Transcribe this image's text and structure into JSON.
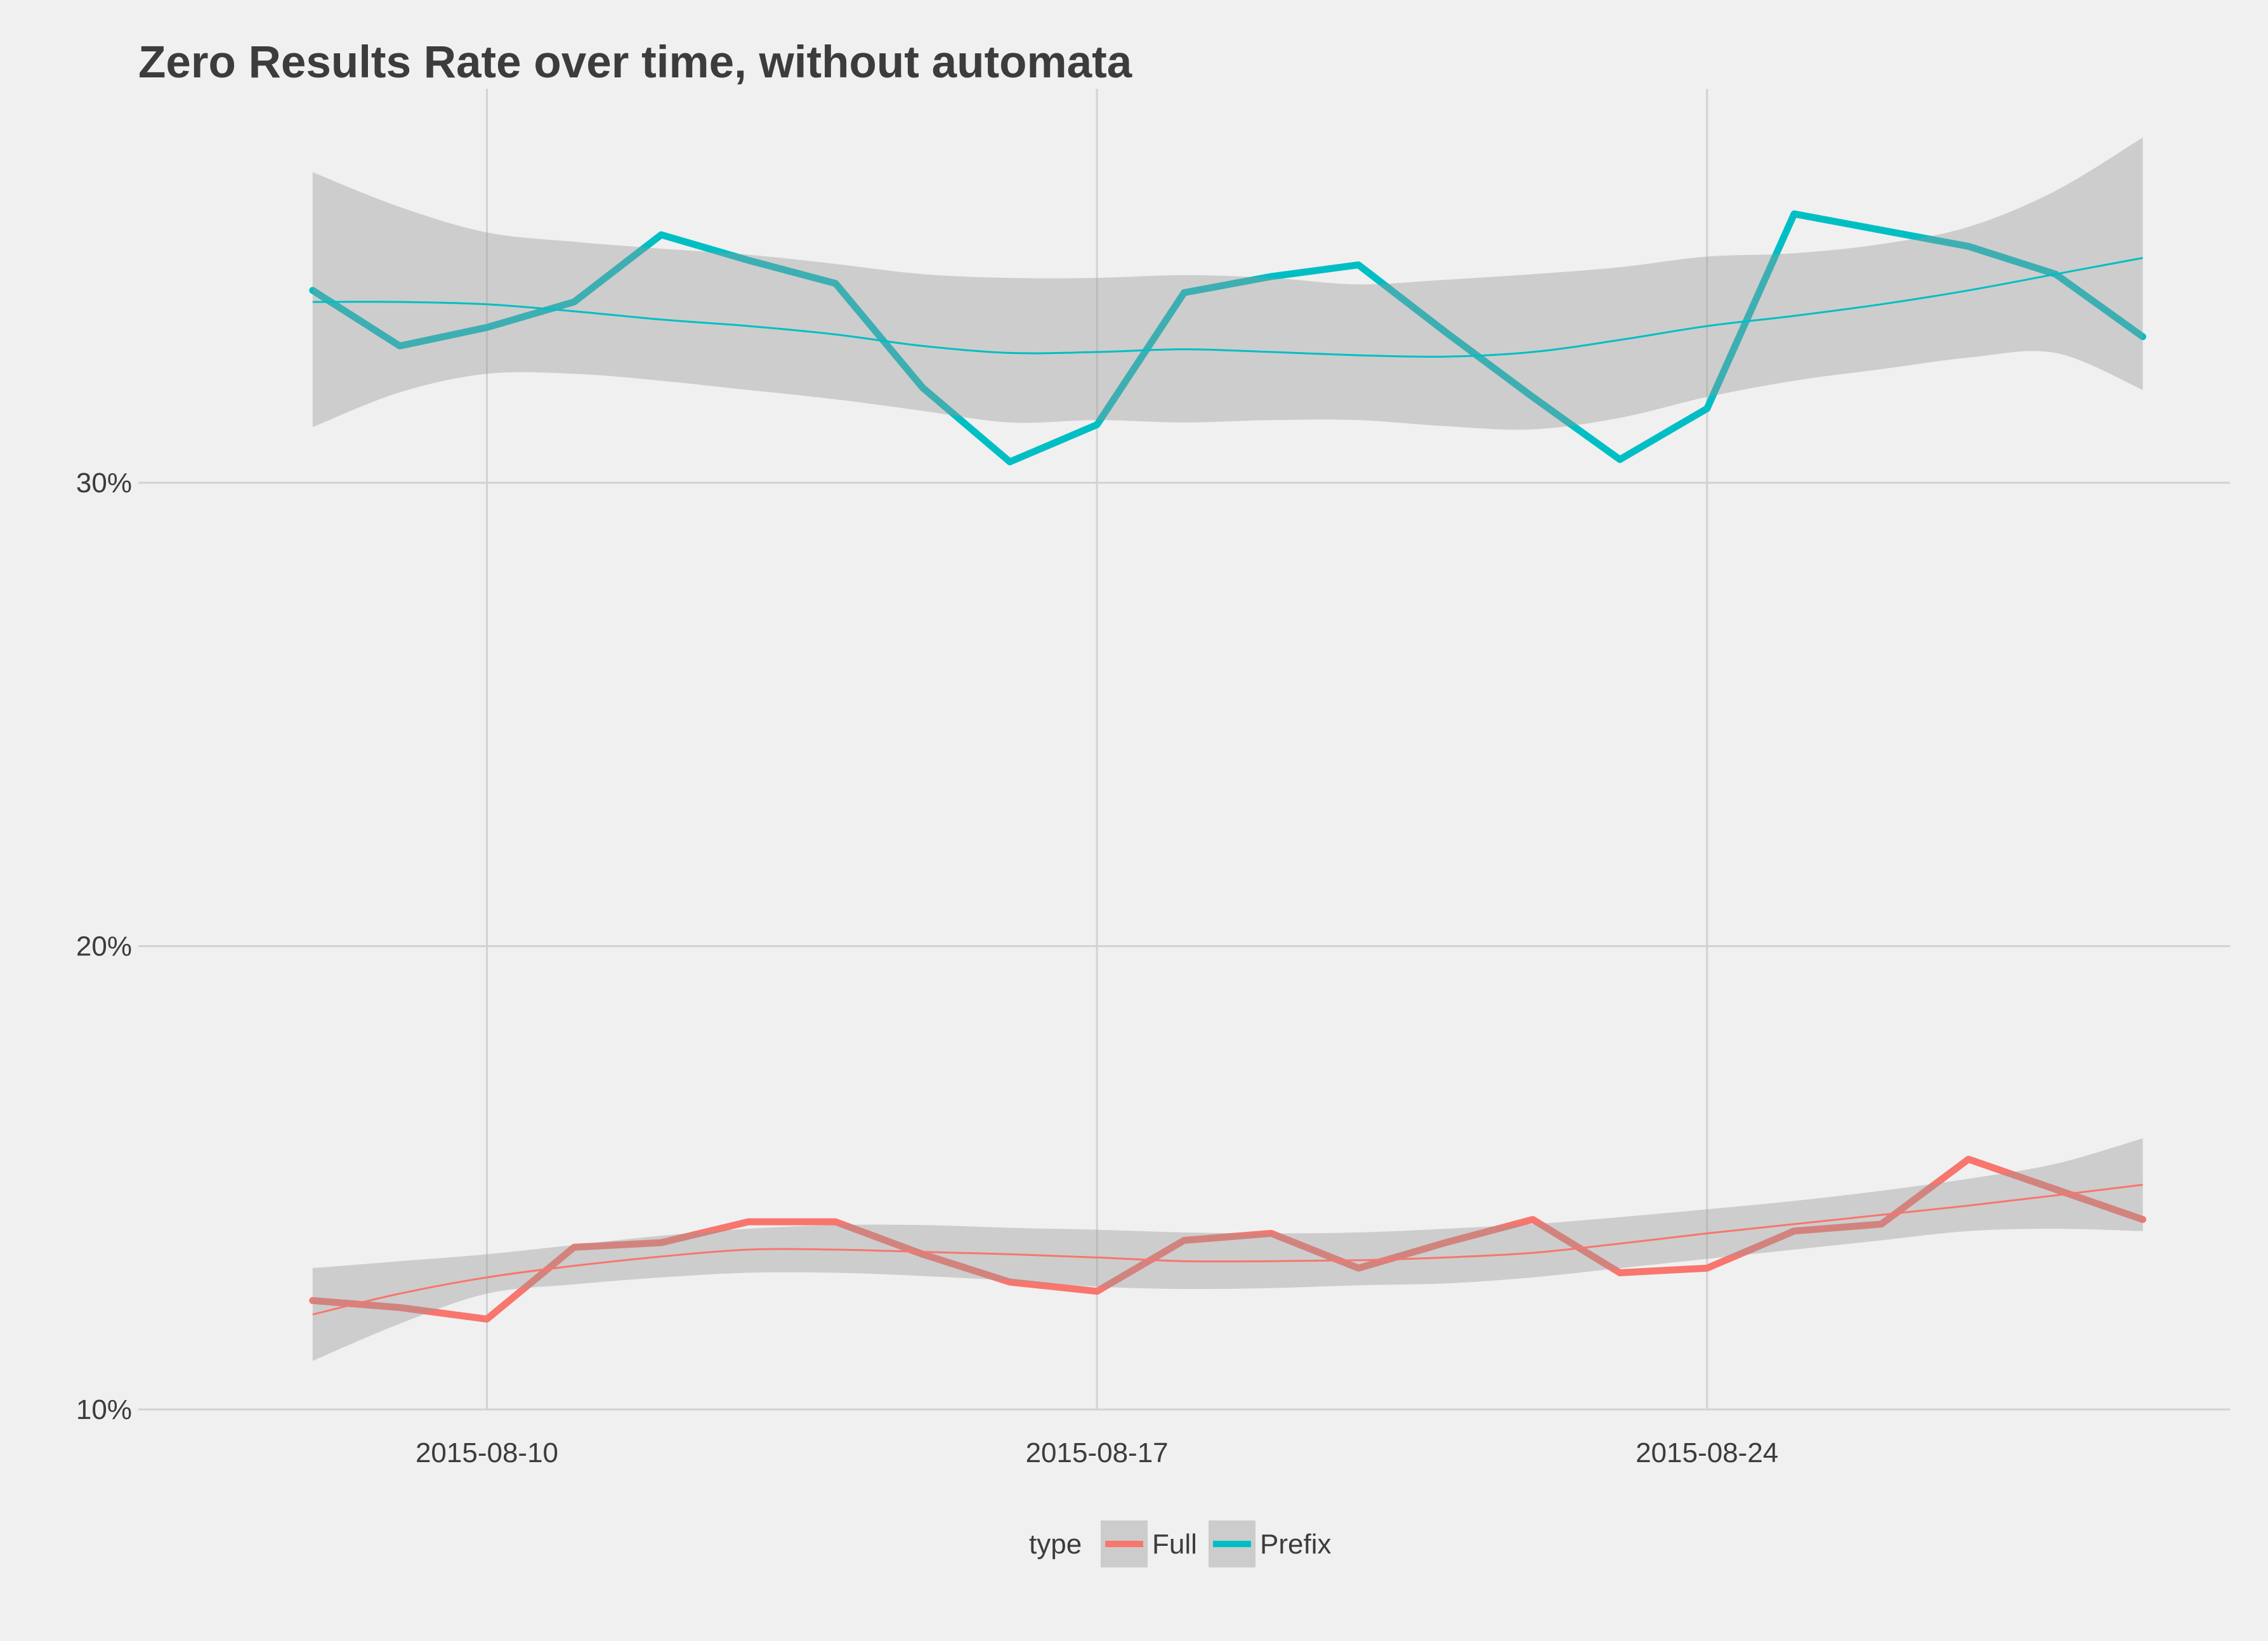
{
  "chart_data": {
    "type": "line",
    "title": "Zero Results Rate over time, without automata",
    "xlabel": "",
    "ylabel": "",
    "x_tick_labels": [
      "2015-08-10",
      "2015-08-17",
      "2015-08-24"
    ],
    "y_tick_labels": [
      "10%",
      "20%",
      "30%"
    ],
    "x_range": [
      "2015-08-06",
      "2015-08-30"
    ],
    "ylim": [
      10,
      38.5
    ],
    "grid": true,
    "legend": {
      "title": "type",
      "position": "bottom"
    },
    "x": [
      "2015-08-08",
      "2015-08-09",
      "2015-08-10",
      "2015-08-11",
      "2015-08-12",
      "2015-08-13",
      "2015-08-14",
      "2015-08-15",
      "2015-08-16",
      "2015-08-17",
      "2015-08-18",
      "2015-08-19",
      "2015-08-20",
      "2015-08-21",
      "2015-08-22",
      "2015-08-23",
      "2015-08-24",
      "2015-08-25",
      "2015-08-26",
      "2015-08-27",
      "2015-08-28",
      "2015-08-29"
    ],
    "series": [
      {
        "name": "Full",
        "color": "#F8766D",
        "values": [
          12.35,
          12.2,
          11.95,
          13.5,
          13.6,
          14.05,
          14.05,
          13.35,
          12.75,
          12.55,
          13.65,
          13.8,
          13.05,
          13.6,
          14.1,
          12.95,
          13.05,
          13.85,
          14.0,
          15.4,
          14.75,
          14.1
        ],
        "smooth": [
          12.05,
          12.5,
          12.85,
          13.1,
          13.3,
          13.45,
          13.45,
          13.4,
          13.35,
          13.28,
          13.2,
          13.2,
          13.22,
          13.28,
          13.38,
          13.58,
          13.8,
          14.0,
          14.2,
          14.4,
          14.62,
          14.85
        ],
        "band_lower": [
          11.05,
          11.85,
          12.5,
          12.7,
          12.85,
          12.95,
          12.95,
          12.88,
          12.78,
          12.65,
          12.6,
          12.62,
          12.68,
          12.72,
          12.85,
          13.05,
          13.25,
          13.45,
          13.65,
          13.85,
          13.9,
          13.85
        ],
        "band_upper": [
          13.05,
          13.2,
          13.35,
          13.55,
          13.75,
          13.9,
          13.98,
          13.98,
          13.92,
          13.88,
          13.82,
          13.8,
          13.82,
          13.9,
          14.0,
          14.15,
          14.32,
          14.5,
          14.72,
          14.98,
          15.3,
          15.85
        ]
      },
      {
        "name": "Prefix",
        "color": "#00BFC4",
        "values": [
          34.15,
          32.95,
          33.35,
          33.9,
          35.35,
          34.8,
          34.3,
          32.05,
          30.45,
          31.25,
          34.1,
          34.45,
          34.7,
          33.25,
          31.85,
          30.5,
          31.6,
          35.8,
          35.45,
          35.1,
          34.5,
          33.15
        ],
        "smooth": [
          33.9,
          33.9,
          33.85,
          33.7,
          33.52,
          33.38,
          33.2,
          32.95,
          32.8,
          32.82,
          32.88,
          32.82,
          32.75,
          32.72,
          32.82,
          33.08,
          33.38,
          33.6,
          33.85,
          34.15,
          34.5,
          34.85
        ],
        "band_lower": [
          31.2,
          31.95,
          32.35,
          32.35,
          32.2,
          32.0,
          31.8,
          31.55,
          31.3,
          31.35,
          31.3,
          31.35,
          31.35,
          31.22,
          31.15,
          31.4,
          31.85,
          32.2,
          32.45,
          32.7,
          32.8,
          32.0
        ],
        "band_upper": [
          36.7,
          35.95,
          35.4,
          35.2,
          35.05,
          34.92,
          34.72,
          34.5,
          34.42,
          34.42,
          34.48,
          34.42,
          34.28,
          34.38,
          34.5,
          34.65,
          34.88,
          34.95,
          35.15,
          35.52,
          36.3,
          37.45
        ]
      }
    ]
  }
}
